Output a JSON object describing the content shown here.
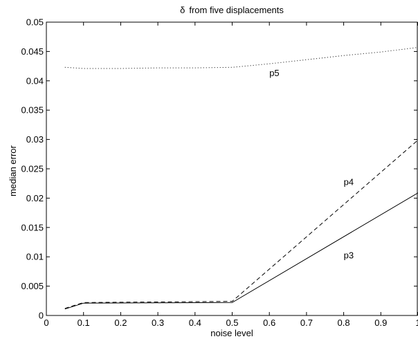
{
  "chart_data": {
    "type": "line",
    "title_symbol": "δ",
    "title": "from five  displacements",
    "xlabel": "noise level",
    "ylabel": "median error",
    "xlim": [
      0,
      1
    ],
    "ylim": [
      0,
      0.05
    ],
    "x_ticks": [
      0,
      0.1,
      0.2,
      0.3,
      0.4,
      0.5,
      0.6,
      0.7,
      0.8,
      0.9,
      1
    ],
    "x_tick_labels": [
      "0",
      "0.1",
      "0.2",
      "0.3",
      "0.4",
      "0.5",
      "0.6",
      "0.7",
      "0.8",
      "0.9",
      "1"
    ],
    "y_ticks": [
      0,
      0.005,
      0.01,
      0.015,
      0.02,
      0.025,
      0.03,
      0.035,
      0.04,
      0.045,
      0.05
    ],
    "y_tick_labels": [
      "0",
      "0.005",
      "0.01",
      "0.015",
      "0.02",
      "0.025",
      "0.03",
      "0.035",
      "0.04",
      "0.045",
      "0.05"
    ],
    "grid": false,
    "series": [
      {
        "name": "p3",
        "style": "solid",
        "color": "#000000",
        "x": [
          0.05,
          0.1,
          0.5,
          1.0
        ],
        "y": [
          0.0011,
          0.0021,
          0.0022,
          0.0209
        ],
        "label_at": [
          0.8,
          0.0097
        ]
      },
      {
        "name": "p4",
        "style": "dashed",
        "color": "#000000",
        "x": [
          0.05,
          0.1,
          0.5,
          1.0
        ],
        "y": [
          0.0012,
          0.0022,
          0.0024,
          0.0299
        ],
        "label_at": [
          0.8,
          0.0222
        ]
      },
      {
        "name": "p5",
        "style": "dotted",
        "color": "#000000",
        "x": [
          0.05,
          0.1,
          0.2,
          0.3,
          0.4,
          0.5,
          0.6,
          0.7,
          0.8,
          0.9,
          1.0
        ],
        "y": [
          0.0423,
          0.0421,
          0.0421,
          0.0422,
          0.0422,
          0.0423,
          0.0429,
          0.0436,
          0.0443,
          0.0449,
          0.0457
        ],
        "label_at": [
          0.6,
          0.0408
        ]
      }
    ]
  }
}
